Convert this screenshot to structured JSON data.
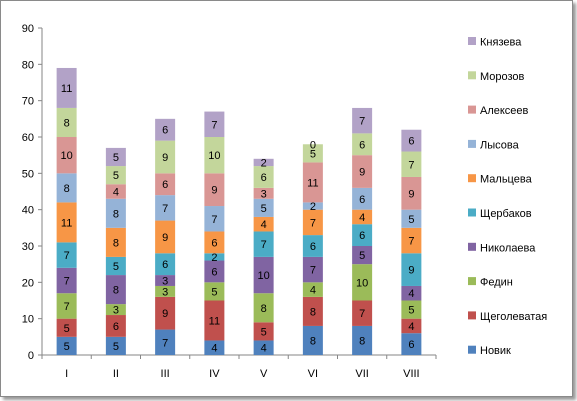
{
  "chart_data": {
    "type": "bar",
    "stacked": true,
    "categories": [
      "I",
      "II",
      "III",
      "IV",
      "V",
      "VI",
      "VII",
      "VIII"
    ],
    "ylim": [
      0,
      90
    ],
    "yticks": [
      0,
      10,
      20,
      30,
      40,
      50,
      60,
      70,
      80,
      90
    ],
    "grid": false,
    "legend": "right",
    "series": [
      {
        "name": "Новик",
        "color": "#4F81BD",
        "values": [
          5,
          5,
          7,
          4,
          4,
          8,
          8,
          6
        ]
      },
      {
        "name": "Щеголеватая",
        "color": "#C0504D",
        "values": [
          5,
          6,
          9,
          11,
          5,
          8,
          7,
          4
        ]
      },
      {
        "name": "Федин",
        "color": "#9BBB59",
        "values": [
          7,
          3,
          3,
          5,
          8,
          4,
          10,
          5
        ]
      },
      {
        "name": "Николаева",
        "color": "#8064A2",
        "values": [
          7,
          8,
          3,
          6,
          10,
          7,
          5,
          4
        ]
      },
      {
        "name": "Щербаков",
        "color": "#4BACC6",
        "values": [
          7,
          5,
          6,
          2,
          7,
          6,
          6,
          9
        ]
      },
      {
        "name": "Мальцева",
        "color": "#F79646",
        "values": [
          11,
          8,
          9,
          6,
          4,
          7,
          4,
          7
        ]
      },
      {
        "name": "Лысова",
        "color": "#95B3D7",
        "values": [
          8,
          8,
          7,
          7,
          5,
          2,
          6,
          5
        ]
      },
      {
        "name": "Алексеев",
        "color": "#D99694",
        "values": [
          10,
          4,
          6,
          9,
          3,
          11,
          9,
          9
        ]
      },
      {
        "name": "Морозов",
        "color": "#C3D69B",
        "values": [
          8,
          5,
          9,
          10,
          6,
          5,
          6,
          7
        ]
      },
      {
        "name": "Князева",
        "color": "#B2A2C7",
        "values": [
          11,
          5,
          6,
          7,
          2,
          0,
          7,
          6
        ]
      }
    ]
  }
}
